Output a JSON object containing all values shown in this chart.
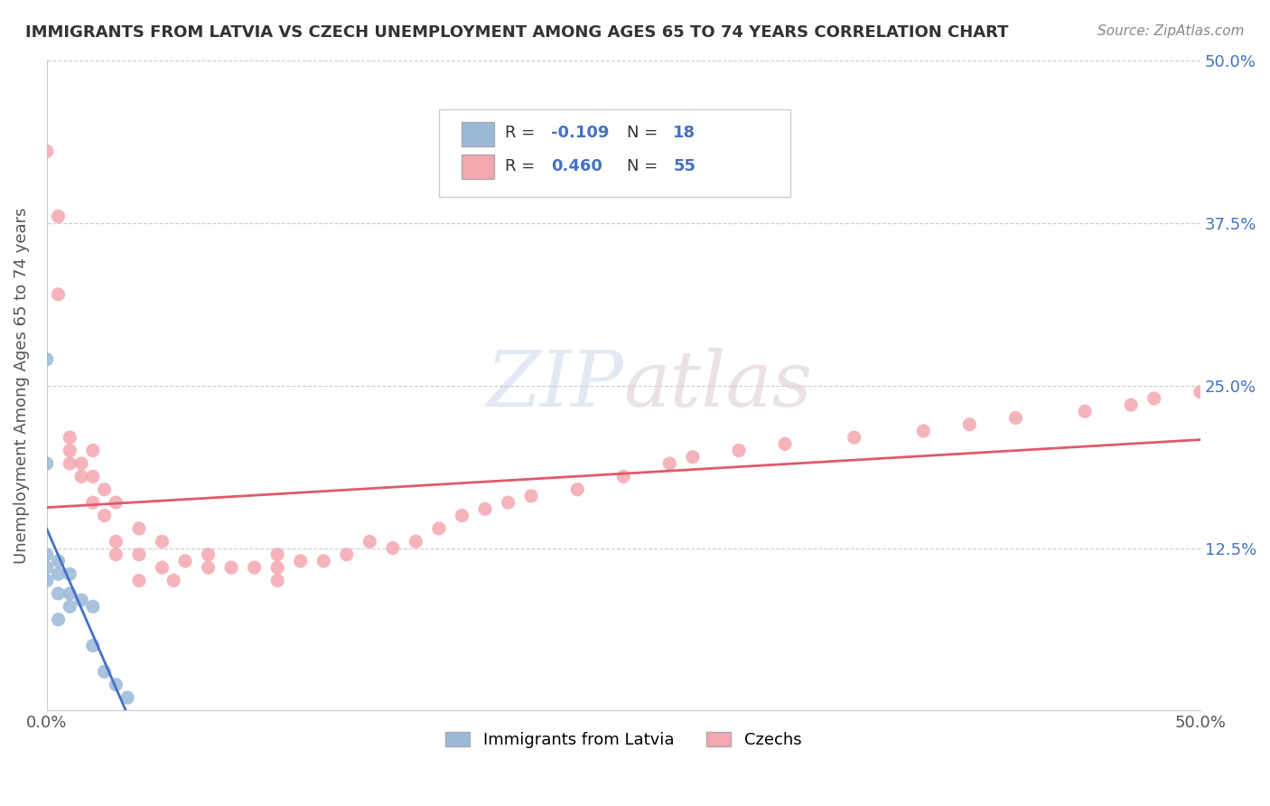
{
  "title": "IMMIGRANTS FROM LATVIA VS CZECH UNEMPLOYMENT AMONG AGES 65 TO 74 YEARS CORRELATION CHART",
  "source": "Source: ZipAtlas.com",
  "ylabel": "Unemployment Among Ages 65 to 74 years",
  "xlim": [
    0.0,
    0.5
  ],
  "ylim": [
    0.0,
    0.5
  ],
  "ytick_positions": [
    0.125,
    0.25,
    0.375,
    0.5
  ],
  "color_latvia": "#9ab8d8",
  "color_czech": "#f4a7b0",
  "color_line_latvia": "#4472c4",
  "color_line_czech": "#e05a6a",
  "background_color": "#ffffff",
  "grid_color": "#cccccc",
  "latvia_x": [
    0.0,
    0.0,
    0.0,
    0.0,
    0.0,
    0.005,
    0.005,
    0.005,
    0.005,
    0.01,
    0.01,
    0.01,
    0.015,
    0.02,
    0.02,
    0.025,
    0.03,
    0.035
  ],
  "latvia_y": [
    0.27,
    0.19,
    0.12,
    0.11,
    0.1,
    0.115,
    0.105,
    0.09,
    0.07,
    0.105,
    0.09,
    0.08,
    0.085,
    0.08,
    0.05,
    0.03,
    0.02,
    0.01
  ],
  "czech_x": [
    0.0,
    0.005,
    0.005,
    0.01,
    0.01,
    0.01,
    0.015,
    0.015,
    0.02,
    0.02,
    0.02,
    0.025,
    0.025,
    0.03,
    0.03,
    0.03,
    0.04,
    0.04,
    0.04,
    0.05,
    0.05,
    0.055,
    0.06,
    0.07,
    0.07,
    0.08,
    0.09,
    0.1,
    0.1,
    0.1,
    0.11,
    0.12,
    0.13,
    0.14,
    0.15,
    0.16,
    0.17,
    0.18,
    0.19,
    0.2,
    0.21,
    0.23,
    0.25,
    0.27,
    0.28,
    0.3,
    0.32,
    0.35,
    0.38,
    0.4,
    0.42,
    0.45,
    0.47,
    0.48,
    0.5
  ],
  "czech_y": [
    0.43,
    0.38,
    0.32,
    0.21,
    0.2,
    0.19,
    0.19,
    0.18,
    0.2,
    0.18,
    0.16,
    0.17,
    0.15,
    0.16,
    0.13,
    0.12,
    0.14,
    0.12,
    0.1,
    0.13,
    0.11,
    0.1,
    0.115,
    0.12,
    0.11,
    0.11,
    0.11,
    0.12,
    0.11,
    0.1,
    0.115,
    0.115,
    0.12,
    0.13,
    0.125,
    0.13,
    0.14,
    0.15,
    0.155,
    0.16,
    0.165,
    0.17,
    0.18,
    0.19,
    0.195,
    0.2,
    0.205,
    0.21,
    0.215,
    0.22,
    0.225,
    0.23,
    0.235,
    0.24,
    0.245
  ]
}
